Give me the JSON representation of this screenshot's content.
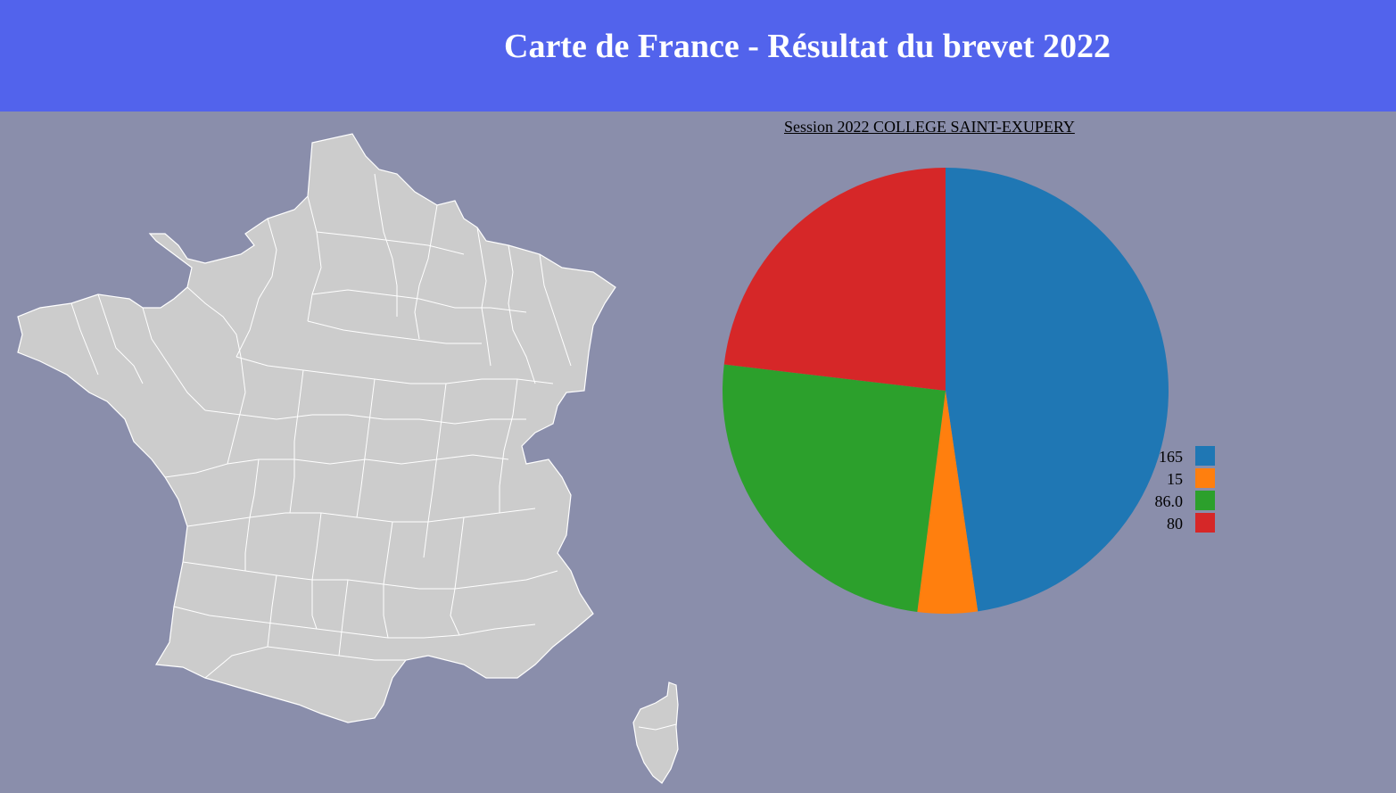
{
  "header": {
    "title": "Carte de France - Résultat du brevet 2022"
  },
  "map": {
    "land_color": "#cccccc",
    "border_color": "#ffffff"
  },
  "chart_data": {
    "type": "pie",
    "title": "Session 2022 COLLEGE SAINT-EXUPERY",
    "values": [
      165,
      15,
      86.0,
      80
    ],
    "labels": [
      "165",
      "15",
      "86.0",
      "80"
    ],
    "colors": [
      "#1f77b4",
      "#ff7f0e",
      "#2ca02c",
      "#d62728"
    ],
    "legend": "right"
  }
}
